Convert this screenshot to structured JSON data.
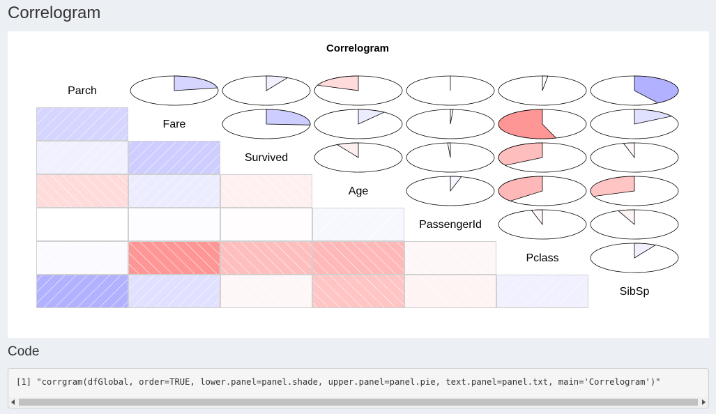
{
  "page": {
    "title": "Correlogram",
    "code_heading": "Code",
    "code_text": "[1] \"corrgram(dfGlobal, order=TRUE, lower.panel=panel.shade, upper.panel=panel.pie, text.panel=panel.txt, main='Correlogram')\""
  },
  "colors": {
    "positive_full": "#0000ff",
    "negative_full": "#ff0000"
  },
  "chart_data": {
    "type": "heatmap",
    "title": "Correlogram",
    "variables": [
      "Parch",
      "Fare",
      "Survived",
      "Age",
      "PassengerId",
      "Pclass",
      "SibSp"
    ],
    "lower_panel": "shade",
    "upper_panel": "pie",
    "correlation_matrix": [
      [
        1.0,
        0.22,
        0.08,
        -0.19,
        -0.0,
        0.02,
        0.41
      ],
      [
        0.22,
        1.0,
        0.26,
        0.1,
        0.01,
        -0.55,
        0.16
      ],
      [
        0.08,
        0.26,
        1.0,
        -0.08,
        -0.01,
        -0.34,
        -0.04
      ],
      [
        -0.19,
        0.1,
        -0.08,
        1.0,
        0.04,
        -0.37,
        -0.31
      ],
      [
        -0.0,
        0.01,
        -0.01,
        0.04,
        1.0,
        -0.04,
        -0.06
      ],
      [
        0.02,
        -0.55,
        -0.34,
        -0.37,
        -0.04,
        1.0,
        0.08
      ],
      [
        0.41,
        0.16,
        -0.04,
        -0.31,
        -0.06,
        0.08,
        1.0
      ]
    ]
  }
}
